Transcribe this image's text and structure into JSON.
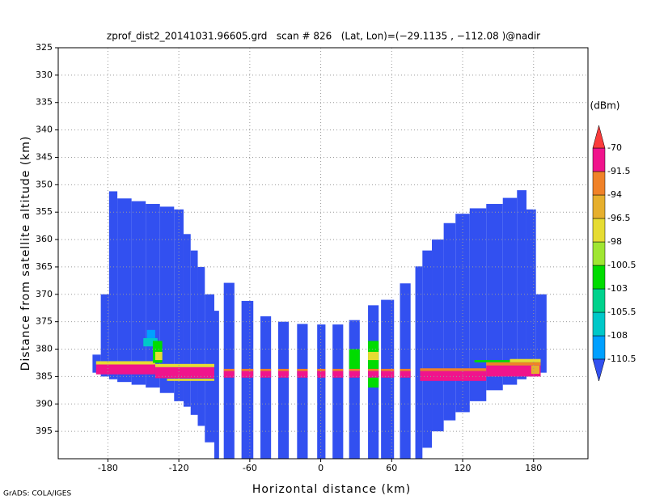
{
  "chart_data": {
    "type": "profile",
    "title": "zprof_dist2_20141031.96605.grd   scan # 826   (Lat, Lon)=(−29.1135 , −112.08 )@nadir",
    "x_label": "Horizontal distance (km)",
    "y_label": "Distance from satellite altitude (km)",
    "colorbar_unit": "(dBm)",
    "credit": "GrADS: COLA/IGES",
    "xlim": [
      -222,
      226
    ],
    "xticks": [
      -180,
      -120,
      -60,
      0,
      60,
      120,
      180
    ],
    "ylim": [
      325,
      400
    ],
    "yticks": [
      325,
      330,
      335,
      340,
      345,
      350,
      355,
      360,
      365,
      370,
      375,
      380,
      385,
      390,
      395
    ],
    "y_reversed": true,
    "grid": true,
    "levels": [
      -110.5,
      -108,
      -105.5,
      -103,
      -100.5,
      -98,
      -96.5,
      -94,
      -91.5,
      -70
    ],
    "colors": [
      "#3250f0",
      "#00a0ff",
      "#00c8c8",
      "#00d28c",
      "#00dc00",
      "#a0e632",
      "#e6dc32",
      "#e6af2d",
      "#f08228",
      "#f0148c",
      "#fa3c3c"
    ],
    "cells": [
      [
        -193,
        -186,
        381,
        384.3,
        -112
      ],
      [
        -186,
        -179,
        370,
        385,
        -112
      ],
      [
        -179,
        -172,
        351.2,
        385.5,
        -112
      ],
      [
        -172,
        -160,
        352.5,
        386,
        -112
      ],
      [
        -160,
        -148,
        353,
        386.5,
        -112
      ],
      [
        -148,
        -136,
        353.5,
        387,
        -112
      ],
      [
        -136,
        -124,
        354,
        388,
        -112
      ],
      [
        -124,
        -116,
        354.5,
        389.5,
        -112
      ],
      [
        -116,
        -110,
        359,
        390.5,
        -112
      ],
      [
        -110,
        -104,
        362,
        392,
        -112
      ],
      [
        -104,
        -98,
        365,
        394,
        -112
      ],
      [
        -98,
        -90,
        370,
        397,
        -112
      ],
      [
        -90,
        -86,
        373,
        400,
        -112
      ],
      [
        -82,
        -73,
        367.9,
        400,
        -112
      ],
      [
        -67,
        -57,
        371.2,
        400,
        -112
      ],
      [
        -51,
        -42,
        374,
        400,
        -112
      ],
      [
        -36,
        -27,
        375,
        400,
        -112
      ],
      [
        -20,
        -11,
        375.4,
        400,
        -112
      ],
      [
        -3,
        4,
        375.5,
        400,
        -112
      ],
      [
        10,
        19,
        375.5,
        400,
        -112
      ],
      [
        24,
        33,
        374.7,
        400,
        -112
      ],
      [
        40,
        49,
        372,
        400,
        -112
      ],
      [
        51,
        62,
        371,
        400,
        -112
      ],
      [
        67,
        76,
        368,
        400,
        -112
      ],
      [
        80,
        86,
        364.9,
        400,
        -112
      ],
      [
        86,
        94,
        362,
        398,
        -112
      ],
      [
        94,
        104,
        360,
        395,
        -112
      ],
      [
        104,
        114,
        357,
        393,
        -112
      ],
      [
        114,
        126,
        355.3,
        391.5,
        -112
      ],
      [
        126,
        140,
        354.3,
        389.5,
        -112
      ],
      [
        140,
        154,
        353.5,
        387.5,
        -112
      ],
      [
        154,
        166,
        352.4,
        386.5,
        -112
      ],
      [
        166,
        174,
        351,
        385.5,
        -112
      ],
      [
        174,
        182,
        354.5,
        385,
        -112
      ],
      [
        182,
        191,
        370,
        384.3,
        -112
      ],
      [
        -190,
        -140,
        382.2,
        382.8,
        -97
      ],
      [
        -140,
        -90,
        382.7,
        383.3,
        -97
      ],
      [
        -190,
        -140,
        382.8,
        384.6,
        -85
      ],
      [
        -140,
        -90,
        383.3,
        385.3,
        -85
      ],
      [
        -130,
        -90,
        385.4,
        385.8,
        -97
      ],
      [
        -150,
        -138,
        378,
        379.5,
        -107
      ],
      [
        -147,
        -140,
        376.5,
        378,
        -109
      ],
      [
        -142,
        -134,
        378.5,
        382.5,
        -102
      ],
      [
        -140,
        -134,
        380.5,
        382,
        -97
      ],
      [
        -82,
        -73,
        383.6,
        384,
        -93
      ],
      [
        -82,
        -73,
        384,
        385.2,
        -85
      ],
      [
        -67,
        -57,
        383.6,
        384,
        -93
      ],
      [
        -67,
        -57,
        384,
        385.2,
        -85
      ],
      [
        -51,
        -42,
        383.6,
        384,
        -93
      ],
      [
        -51,
        -42,
        384,
        385.2,
        -85
      ],
      [
        -36,
        -27,
        383.6,
        384,
        -93
      ],
      [
        -36,
        -27,
        384,
        385.2,
        -85
      ],
      [
        -20,
        -11,
        383.6,
        384,
        -93
      ],
      [
        -20,
        -11,
        384,
        385.2,
        -85
      ],
      [
        -3,
        4,
        383.6,
        384,
        -93
      ],
      [
        -3,
        4,
        384,
        385.2,
        -85
      ],
      [
        10,
        19,
        383.6,
        384,
        -93
      ],
      [
        10,
        19,
        384,
        385.2,
        -85
      ],
      [
        24,
        33,
        380,
        383.6,
        -103
      ],
      [
        24,
        33,
        383.6,
        384,
        -93
      ],
      [
        24,
        33,
        384,
        385.2,
        -85
      ],
      [
        40,
        49,
        378.5,
        383.6,
        -102
      ],
      [
        40,
        49,
        380.5,
        382,
        -97
      ],
      [
        40,
        49,
        383.6,
        384,
        -93
      ],
      [
        40,
        49,
        384,
        385.2,
        -85
      ],
      [
        40,
        49,
        385.2,
        387,
        -101
      ],
      [
        51,
        62,
        383.6,
        384,
        -93
      ],
      [
        51,
        62,
        384,
        385.2,
        -85
      ],
      [
        67,
        76,
        383.6,
        384,
        -93
      ],
      [
        67,
        76,
        384,
        385.2,
        -85
      ],
      [
        130,
        184,
        382,
        382.4,
        -102
      ],
      [
        160,
        186,
        381.8,
        382.4,
        -97
      ],
      [
        84,
        140,
        383.5,
        384,
        -93
      ],
      [
        140,
        186,
        382.4,
        383,
        -93
      ],
      [
        84,
        140,
        384,
        385.8,
        -85
      ],
      [
        140,
        186,
        383,
        385,
        -85
      ],
      [
        178,
        185,
        383,
        384.5,
        -95
      ]
    ]
  }
}
